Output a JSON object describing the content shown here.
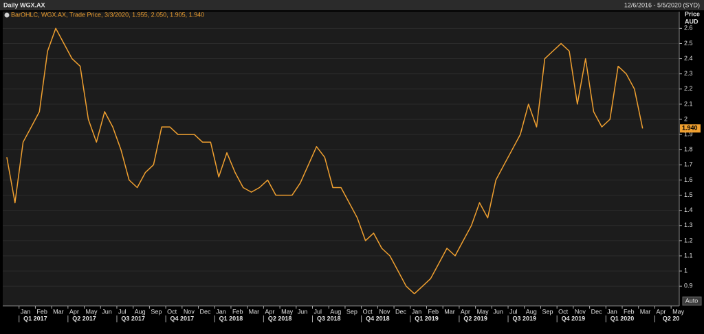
{
  "chart_data": {
    "type": "line",
    "title": "Daily WGX.AX",
    "date_range": "12/6/2016 - 5/5/2020 (SYD)",
    "y_label": "Price",
    "y_unit": "AUD",
    "auto_button": "Auto",
    "grid": true,
    "categories": [
      null,
      null,
      "Jan",
      null,
      "Feb",
      null,
      "Mar",
      null,
      "Apr",
      null,
      "May",
      null,
      "Jun",
      null,
      "Jul",
      null,
      "Aug",
      null,
      "Sep",
      null,
      "Oct",
      null,
      "Nov",
      null,
      "Dec",
      null,
      "Jan",
      null,
      "Feb",
      null,
      "Mar",
      null,
      "Apr",
      null,
      "May",
      null,
      "Jun",
      null,
      "Jul",
      null,
      "Aug",
      null,
      "Sep",
      null,
      "Oct",
      null,
      "Nov",
      null,
      "Dec",
      null,
      "Jan",
      null,
      "Feb",
      null,
      "Mar",
      null,
      "Apr",
      null,
      "May",
      null,
      "Jun",
      null,
      "Jul",
      null,
      "Aug",
      null,
      "Sep",
      null,
      "Oct",
      null,
      "Nov",
      null,
      "Dec",
      null,
      "Jan",
      null,
      "Feb",
      null,
      "Mar",
      null,
      "Apr",
      null,
      "May"
    ],
    "quarters": [
      null,
      null,
      null,
      null,
      "Q1 2017",
      null,
      null,
      null,
      null,
      null,
      "Q2 2017",
      null,
      null,
      null,
      null,
      null,
      "Q3 2017",
      null,
      null,
      null,
      null,
      null,
      "Q4 2017",
      null,
      null,
      null,
      null,
      null,
      "Q1 2018",
      null,
      null,
      null,
      null,
      null,
      "Q2 2018",
      null,
      null,
      null,
      null,
      null,
      "Q3 2018",
      null,
      null,
      null,
      null,
      null,
      "Q4 2018",
      null,
      null,
      null,
      null,
      null,
      "Q1 2019",
      null,
      null,
      null,
      null,
      null,
      "Q2 2019",
      null,
      null,
      null,
      null,
      null,
      "Q3 2019",
      null,
      null,
      null,
      null,
      null,
      "Q4 2019",
      null,
      null,
      null,
      null,
      null,
      "Q1 2020",
      null,
      null,
      null,
      null,
      null,
      "Q2 20"
    ],
    "series": [
      {
        "name": "BarOHLC, WGX.AX, Trade Price, 3/3/2020, 1.955, 2.050, 1.905, 1.940",
        "color": "#f0a030",
        "values": [
          1.75,
          1.45,
          1.85,
          1.95,
          2.05,
          2.45,
          2.6,
          2.5,
          2.4,
          2.35,
          2.0,
          1.85,
          2.05,
          1.95,
          1.8,
          1.6,
          1.55,
          1.65,
          1.7,
          1.95,
          1.95,
          1.9,
          1.9,
          1.9,
          1.85,
          1.85,
          1.62,
          1.78,
          1.65,
          1.55,
          1.52,
          1.55,
          1.6,
          1.5,
          1.5,
          1.5,
          1.58,
          1.7,
          1.82,
          1.75,
          1.55,
          1.55,
          1.45,
          1.35,
          1.2,
          1.25,
          1.15,
          1.1,
          1.0,
          0.9,
          0.85,
          0.9,
          0.95,
          1.05,
          1.15,
          1.1,
          1.2,
          1.3,
          1.45,
          1.35,
          1.6,
          1.7,
          1.8,
          1.9,
          2.1,
          1.95,
          2.4,
          2.45,
          2.5,
          2.45,
          2.1,
          2.4,
          2.05,
          1.95,
          2.0,
          2.35,
          2.3,
          2.2,
          1.94,
          null,
          null,
          null,
          null
        ]
      }
    ],
    "last_value": {
      "value": 1.94,
      "label": "1.940"
    },
    "ylim": [
      0.77,
      2.71
    ],
    "yticks": [
      0.9,
      1,
      1.1,
      1.2,
      1.3,
      1.4,
      1.5,
      1.6,
      1.7,
      1.8,
      1.9,
      2,
      2.1,
      2.2,
      2.3,
      2.4,
      2.5,
      2.6
    ]
  }
}
